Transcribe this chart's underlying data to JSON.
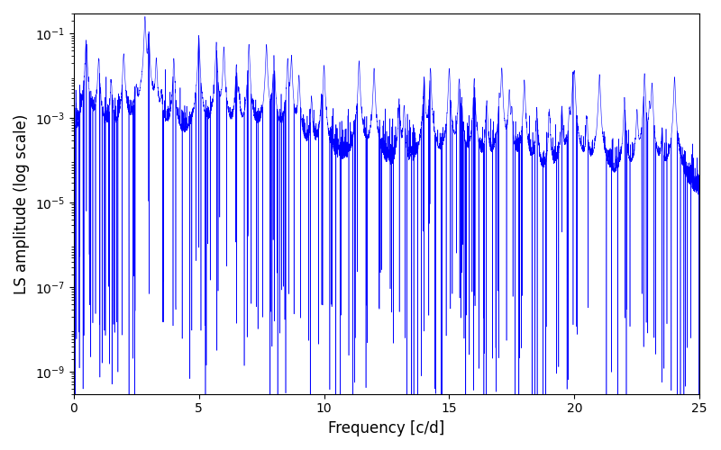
{
  "xlabel": "Frequency [c/d]",
  "ylabel": "LS amplitude (log scale)",
  "line_color": "#0000ff",
  "xlim": [
    0,
    25
  ],
  "ylim": [
    3e-10,
    0.3
  ],
  "background_color": "#ffffff",
  "figsize": [
    8.0,
    5.0
  ],
  "dpi": 100,
  "seed": 123,
  "n_points": 5000,
  "freq_max": 25.0,
  "yticks": [
    1e-09,
    1e-07,
    1e-05,
    0.001,
    0.1
  ],
  "xticks": [
    0,
    5,
    10,
    15,
    20,
    25
  ]
}
